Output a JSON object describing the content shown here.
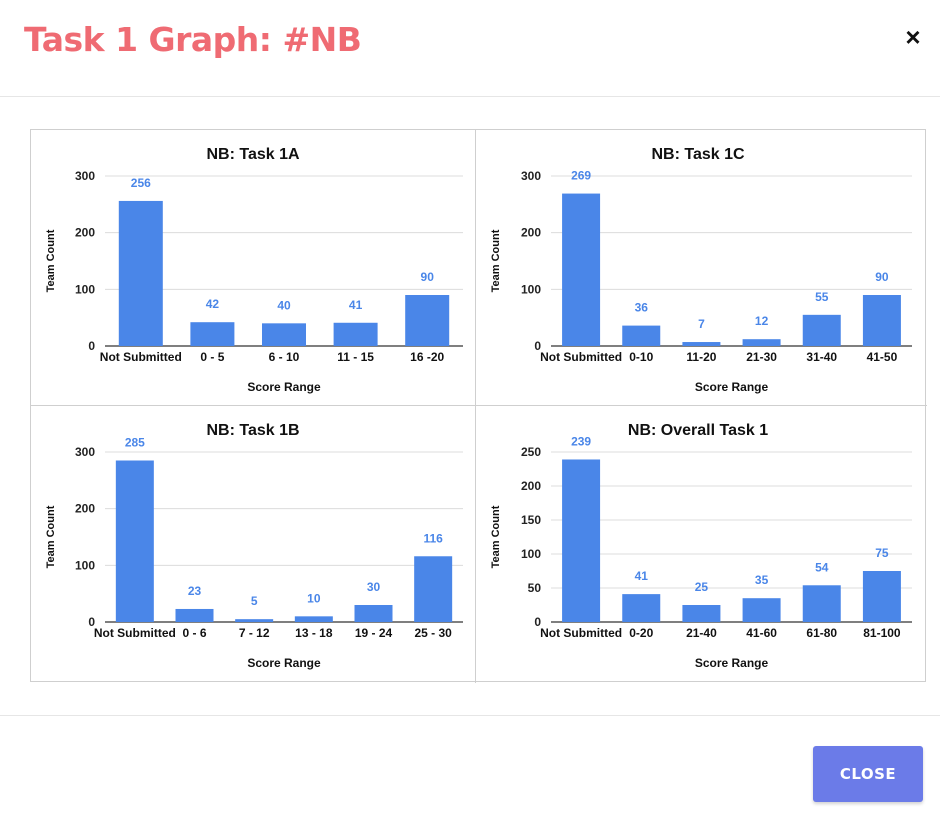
{
  "modal": {
    "title": "Task 1 Graph: #NB",
    "close_icon": "×",
    "close_button_label": "CLOSE"
  },
  "colors": {
    "title": "#ef6b73",
    "bar": "#4a86e8",
    "label": "#4a86e8",
    "button": "#6b7be8"
  },
  "chart_data": [
    {
      "type": "bar",
      "title": "NB: Task 1A",
      "xlabel": "Score Range",
      "ylabel": "Team Count",
      "categories": [
        "Not Submitted",
        "0 - 5",
        "6 - 10",
        "11 - 15",
        "16 -20"
      ],
      "values": [
        256,
        42,
        40,
        41,
        90
      ],
      "ylim": [
        0,
        300
      ],
      "yticks": [
        0,
        100,
        200,
        300
      ],
      "grid": true,
      "legend": "none"
    },
    {
      "type": "bar",
      "title": "NB: Task 1C",
      "xlabel": "Score Range",
      "ylabel": "Team Count",
      "categories": [
        "Not Submitted",
        "0-10",
        "11-20",
        "21-30",
        "31-40",
        "41-50"
      ],
      "values": [
        269,
        36,
        7,
        12,
        55,
        90
      ],
      "ylim": [
        0,
        300
      ],
      "yticks": [
        0,
        100,
        200,
        300
      ],
      "grid": true,
      "legend": "none"
    },
    {
      "type": "bar",
      "title": "NB: Task 1B",
      "xlabel": "Score Range",
      "ylabel": "Team Count",
      "categories": [
        "Not Submitted",
        "0 - 6",
        "7 - 12",
        "13 - 18",
        "19 - 24",
        "25 - 30"
      ],
      "values": [
        285,
        23,
        5,
        10,
        30,
        116
      ],
      "ylim": [
        0,
        300
      ],
      "yticks": [
        0,
        100,
        200,
        300
      ],
      "grid": true,
      "legend": "none"
    },
    {
      "type": "bar",
      "title": "NB: Overall Task 1",
      "xlabel": "Score Range",
      "ylabel": "Team Count",
      "categories": [
        "Not Submitted",
        "0-20",
        "21-40",
        "41-60",
        "61-80",
        "81-100"
      ],
      "values": [
        239,
        41,
        25,
        35,
        54,
        75
      ],
      "ylim": [
        0,
        250
      ],
      "yticks": [
        0,
        50,
        100,
        150,
        200,
        250
      ],
      "grid": true,
      "legend": "none"
    }
  ]
}
